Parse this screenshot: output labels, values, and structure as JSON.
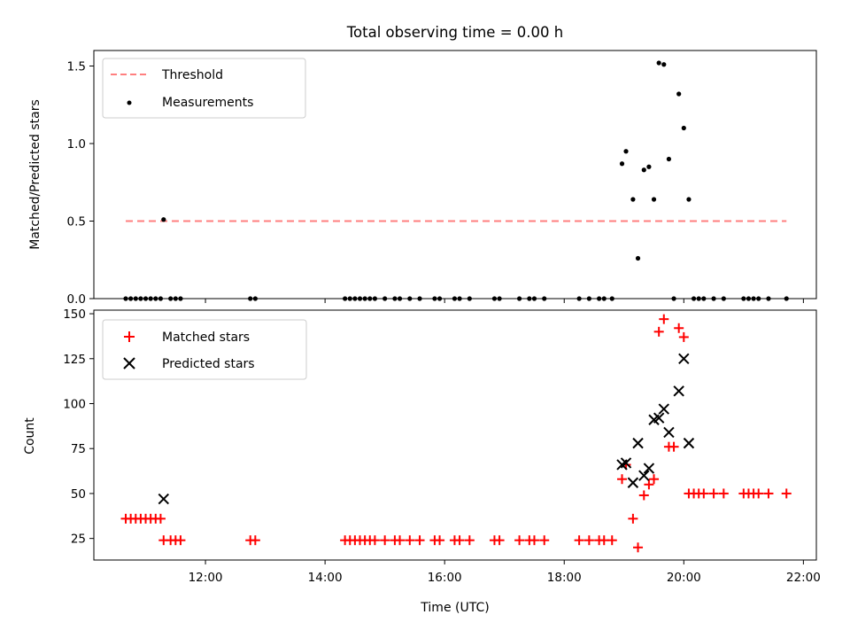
{
  "chart_data": [
    {
      "type": "scatter",
      "title": "Total observing time = 0.00 h",
      "xlabel": "",
      "ylabel": "Matched/Predicted stars",
      "xlim": [
        "10:08",
        "22:13"
      ],
      "ylim": [
        0,
        1.6
      ],
      "yticks": [
        "0.0",
        "0.5",
        "1.0",
        "1.5"
      ],
      "legend": "top-left",
      "threshold": {
        "name": "Threshold",
        "value": 0.5,
        "x_start": "10:40",
        "x_end": "21:43",
        "color": "#ff7f7f",
        "style": "dashed"
      },
      "series": [
        {
          "name": "Measurements",
          "color": "#000000",
          "points": [
            [
              "10:40",
              0
            ],
            [
              "10:45",
              0
            ],
            [
              "10:50",
              0
            ],
            [
              "10:55",
              0
            ],
            [
              "11:00",
              0
            ],
            [
              "11:05",
              0
            ],
            [
              "11:10",
              0
            ],
            [
              "11:15",
              0
            ],
            [
              "11:18",
              0.51
            ],
            [
              "11:25",
              0
            ],
            [
              "11:30",
              0
            ],
            [
              "11:35",
              0
            ],
            [
              "12:45",
              0
            ],
            [
              "12:50",
              0
            ],
            [
              "14:20",
              0
            ],
            [
              "14:25",
              0
            ],
            [
              "14:30",
              0
            ],
            [
              "14:35",
              0
            ],
            [
              "14:40",
              0
            ],
            [
              "14:45",
              0
            ],
            [
              "14:50",
              0
            ],
            [
              "15:00",
              0
            ],
            [
              "15:10",
              0
            ],
            [
              "15:15",
              0
            ],
            [
              "15:25",
              0
            ],
            [
              "15:35",
              0
            ],
            [
              "15:50",
              0
            ],
            [
              "15:55",
              0
            ],
            [
              "16:10",
              0
            ],
            [
              "16:15",
              0
            ],
            [
              "16:25",
              0
            ],
            [
              "16:50",
              0
            ],
            [
              "16:55",
              0
            ],
            [
              "17:15",
              0
            ],
            [
              "17:25",
              0
            ],
            [
              "17:30",
              0
            ],
            [
              "17:40",
              0
            ],
            [
              "18:15",
              0
            ],
            [
              "18:25",
              0
            ],
            [
              "18:35",
              0
            ],
            [
              "18:40",
              0
            ],
            [
              "18:48",
              0
            ],
            [
              "18:58",
              0.87
            ],
            [
              "19:02",
              0.95
            ],
            [
              "19:09",
              0.64
            ],
            [
              "19:14",
              0.26
            ],
            [
              "19:20",
              0.83
            ],
            [
              "19:25",
              0.85
            ],
            [
              "19:30",
              0.64
            ],
            [
              "19:35",
              1.52
            ],
            [
              "19:40",
              1.51
            ],
            [
              "19:45",
              0.9
            ],
            [
              "19:50",
              0
            ],
            [
              "19:55",
              1.32
            ],
            [
              "20:00",
              1.1
            ],
            [
              "20:05",
              0.64
            ],
            [
              "20:10",
              0
            ],
            [
              "20:15",
              0
            ],
            [
              "20:20",
              0
            ],
            [
              "20:30",
              0
            ],
            [
              "20:40",
              0
            ],
            [
              "21:00",
              0
            ],
            [
              "21:05",
              0
            ],
            [
              "21:10",
              0
            ],
            [
              "21:15",
              0
            ],
            [
              "21:25",
              0
            ],
            [
              "21:43",
              0
            ]
          ]
        }
      ]
    },
    {
      "type": "scatter",
      "title": "",
      "xlabel": "Time (UTC)",
      "ylabel": "Count",
      "xlim": [
        "10:08",
        "22:13"
      ],
      "ylim": [
        13,
        152
      ],
      "yticks": [
        "25",
        "50",
        "75",
        "100",
        "125",
        "150"
      ],
      "xticks": [
        "12:00",
        "14:00",
        "16:00",
        "18:00",
        "20:00",
        "22:00"
      ],
      "legend": "top-left",
      "series": [
        {
          "name": "Matched stars",
          "marker": "plus",
          "color": "#ff0000",
          "points": [
            [
              "10:40",
              36
            ],
            [
              "10:45",
              36
            ],
            [
              "10:50",
              36
            ],
            [
              "10:55",
              36
            ],
            [
              "11:00",
              36
            ],
            [
              "11:05",
              36
            ],
            [
              "11:10",
              36
            ],
            [
              "11:15",
              36
            ],
            [
              "11:18",
              24
            ],
            [
              "11:25",
              24
            ],
            [
              "11:30",
              24
            ],
            [
              "11:35",
              24
            ],
            [
              "12:45",
              24
            ],
            [
              "12:50",
              24
            ],
            [
              "14:20",
              24
            ],
            [
              "14:25",
              24
            ],
            [
              "14:30",
              24
            ],
            [
              "14:35",
              24
            ],
            [
              "14:40",
              24
            ],
            [
              "14:45",
              24
            ],
            [
              "14:50",
              24
            ],
            [
              "15:00",
              24
            ],
            [
              "15:10",
              24
            ],
            [
              "15:15",
              24
            ],
            [
              "15:25",
              24
            ],
            [
              "15:35",
              24
            ],
            [
              "15:50",
              24
            ],
            [
              "15:55",
              24
            ],
            [
              "16:10",
              24
            ],
            [
              "16:15",
              24
            ],
            [
              "16:25",
              24
            ],
            [
              "16:50",
              24
            ],
            [
              "16:55",
              24
            ],
            [
              "17:15",
              24
            ],
            [
              "17:25",
              24
            ],
            [
              "17:30",
              24
            ],
            [
              "17:40",
              24
            ],
            [
              "18:15",
              24
            ],
            [
              "18:25",
              24
            ],
            [
              "18:35",
              24
            ],
            [
              "18:40",
              24
            ],
            [
              "18:48",
              24
            ],
            [
              "18:58",
              58
            ],
            [
              "19:02",
              66
            ],
            [
              "19:09",
              36
            ],
            [
              "19:14",
              20
            ],
            [
              "19:20",
              49
            ],
            [
              "19:25",
              55
            ],
            [
              "19:30",
              58
            ],
            [
              "19:35",
              140
            ],
            [
              "19:40",
              147
            ],
            [
              "19:45",
              76
            ],
            [
              "19:50",
              76
            ],
            [
              "19:55",
              142
            ],
            [
              "20:00",
              137
            ],
            [
              "20:05",
              50
            ],
            [
              "20:10",
              50
            ],
            [
              "20:15",
              50
            ],
            [
              "20:20",
              50
            ],
            [
              "20:30",
              50
            ],
            [
              "20:40",
              50
            ],
            [
              "21:00",
              50
            ],
            [
              "21:05",
              50
            ],
            [
              "21:10",
              50
            ],
            [
              "21:15",
              50
            ],
            [
              "21:25",
              50
            ],
            [
              "21:43",
              50
            ]
          ]
        },
        {
          "name": "Predicted stars",
          "marker": "x",
          "color": "#000000",
          "points": [
            [
              "11:18",
              47
            ],
            [
              "18:58",
              66
            ],
            [
              "19:02",
              67
            ],
            [
              "19:09",
              56
            ],
            [
              "19:14",
              78
            ],
            [
              "19:20",
              60
            ],
            [
              "19:25",
              64
            ],
            [
              "19:30",
              91
            ],
            [
              "19:35",
              92
            ],
            [
              "19:40",
              97
            ],
            [
              "19:45",
              84
            ],
            [
              "19:55",
              107
            ],
            [
              "20:00",
              125
            ],
            [
              "20:05",
              78
            ]
          ]
        }
      ]
    }
  ]
}
